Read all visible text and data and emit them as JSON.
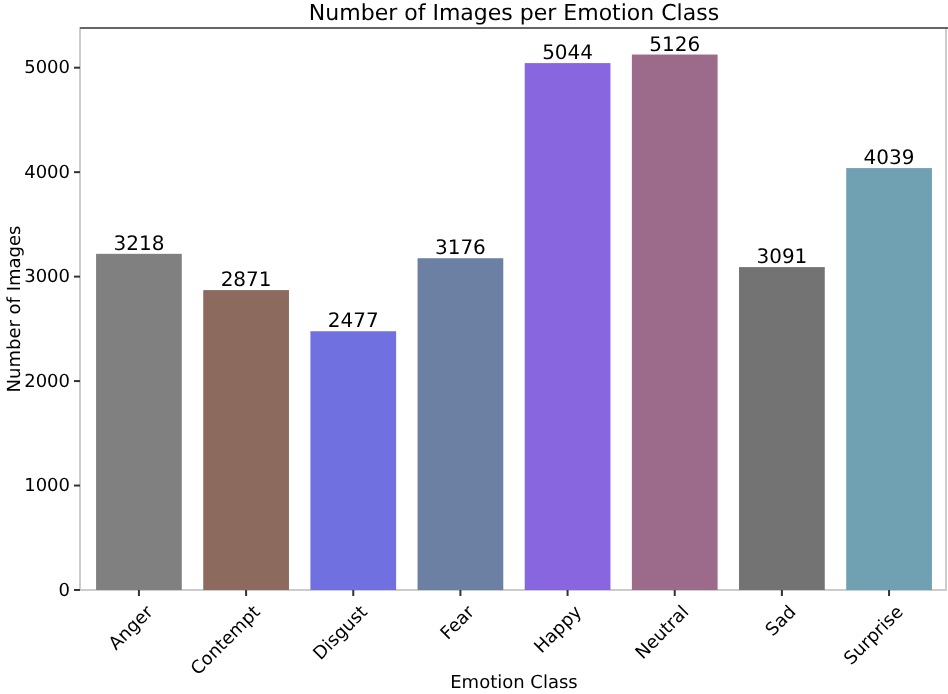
{
  "chart_data": {
    "type": "bar",
    "title": "Number of Images per Emotion Class",
    "xlabel": "Emotion Class",
    "ylabel": "Number of Images",
    "categories": [
      "Anger",
      "Contempt",
      "Disgust",
      "Fear",
      "Happy",
      "Neutral",
      "Sad",
      "Surprise"
    ],
    "values": [
      3218,
      2871,
      2477,
      3176,
      5044,
      5126,
      3091,
      4039
    ],
    "colors": [
      "#808080",
      "#8c6b5e",
      "#7070e0",
      "#6b80a3",
      "#8866e0",
      "#9c6a8a",
      "#737373",
      "#70a1b3"
    ],
    "ylim": [
      0,
      5380
    ],
    "yticks": [
      0,
      1000,
      2000,
      3000,
      4000,
      5000
    ],
    "data_labels": true,
    "grid": false
  }
}
